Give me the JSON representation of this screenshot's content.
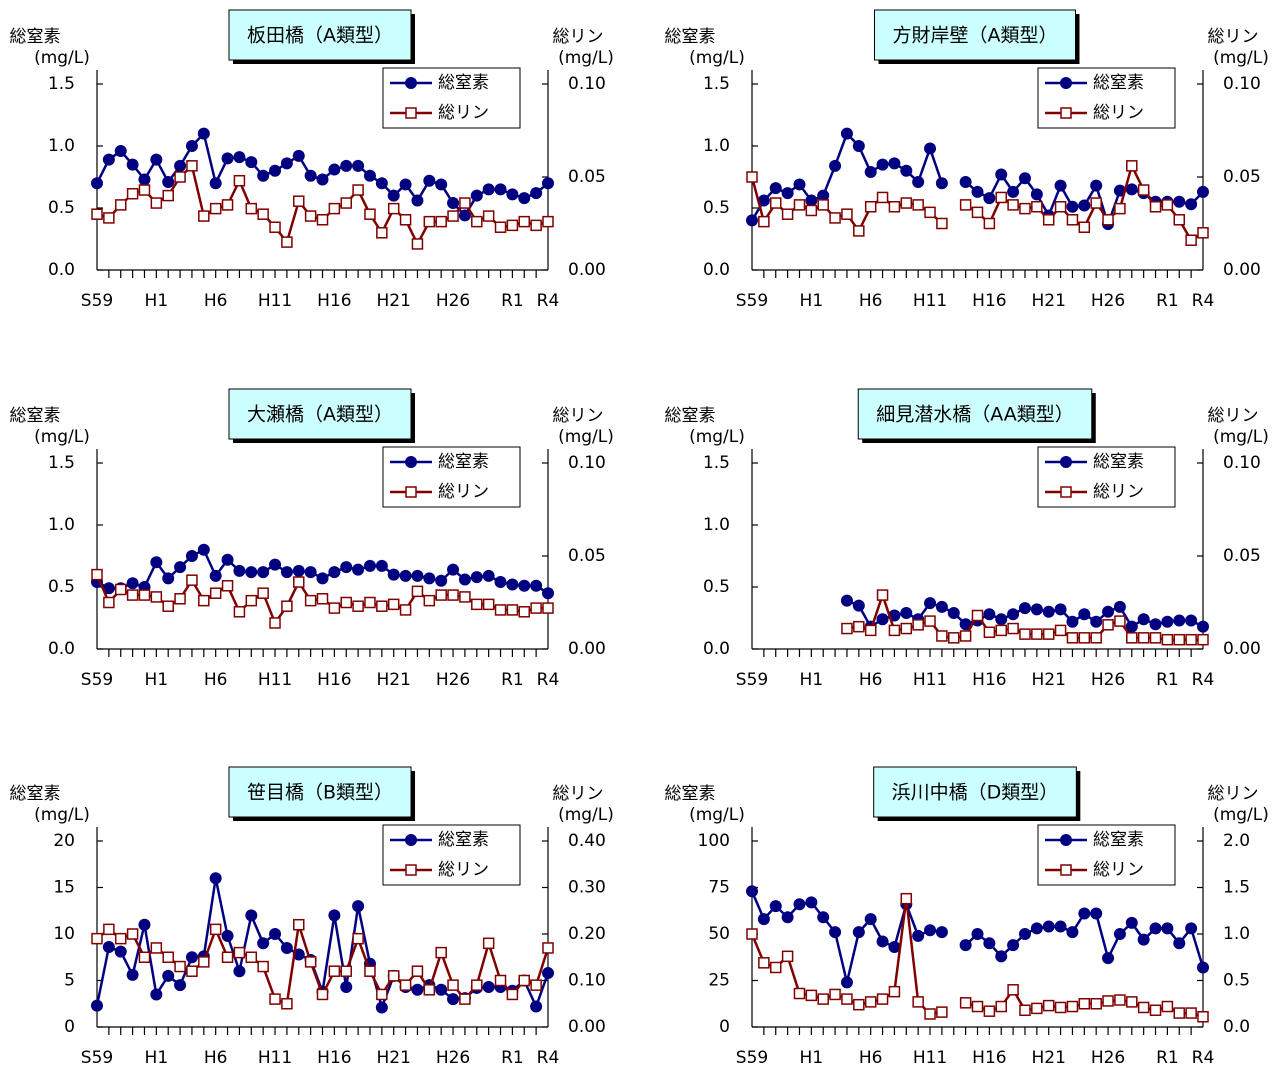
{
  "chart_data": [
    {
      "type": "line",
      "title": "板田橋（A類型）",
      "ylabel": "総窒素",
      "yunit": "(mg/L)",
      "y2label": "総リン",
      "y2unit": "(mg/L)",
      "legend": "upper right",
      "categories": [
        "S59",
        null,
        null,
        null,
        null,
        "H1",
        null,
        null,
        null,
        null,
        "H6",
        null,
        null,
        null,
        null,
        "H11",
        null,
        null,
        null,
        null,
        "H16",
        null,
        null,
        null,
        null,
        "H21",
        null,
        null,
        null,
        null,
        "H26",
        null,
        null,
        null,
        null,
        "R1",
        null,
        null,
        "R4"
      ],
      "ylim": [
        0,
        1.5
      ],
      "yticks": [
        {
          "value": 0,
          "label": "0.0"
        },
        0.5,
        {
          "value": 1,
          "label": "1.0"
        },
        1.5
      ],
      "y2lim": [
        0,
        0.1
      ],
      "y2ticks": [
        {
          "value": 0,
          "label": "0.00"
        },
        0.05,
        {
          "value": 0.1,
          "label": "0.10"
        }
      ],
      "series": [
        {
          "name": "総窒素",
          "color": "#000080",
          "marker": "circle",
          "values": [
            0.7,
            0.89,
            0.96,
            0.85,
            0.73,
            0.89,
            0.71,
            0.84,
            1.0,
            1.1,
            0.7,
            0.9,
            0.91,
            0.87,
            0.76,
            0.8,
            0.86,
            0.92,
            0.76,
            0.73,
            0.81,
            0.84,
            0.84,
            0.76,
            0.7,
            0.6,
            0.69,
            0.56,
            0.72,
            0.69,
            0.54,
            0.44,
            0.6,
            0.65,
            0.65,
            0.61,
            0.58,
            0.62,
            0.7
          ]
        },
        {
          "name": "総リン",
          "color": "#800000",
          "marker": "square",
          "axis": "y2",
          "values": [
            0.03,
            0.028,
            0.035,
            0.041,
            0.043,
            0.036,
            0.04,
            0.05,
            0.056,
            0.029,
            0.033,
            0.035,
            0.048,
            0.033,
            0.03,
            0.023,
            0.015,
            0.037,
            0.029,
            0.027,
            0.033,
            0.036,
            0.043,
            0.03,
            0.02,
            0.033,
            0.027,
            0.014,
            0.026,
            0.026,
            0.029,
            0.036,
            0.026,
            0.029,
            0.023,
            0.024,
            0.026,
            0.024,
            0.026
          ]
        }
      ]
    },
    {
      "type": "line",
      "title": "方財岸壁（A類型）",
      "ylabel": "総窒素",
      "yunit": "(mg/L)",
      "y2label": "総リン",
      "y2unit": "(mg/L)",
      "legend": "upper right",
      "categories": [
        "S59",
        null,
        null,
        null,
        null,
        "H1",
        null,
        null,
        null,
        null,
        "H6",
        null,
        null,
        null,
        null,
        "H11",
        null,
        null,
        null,
        null,
        "H16",
        null,
        null,
        null,
        null,
        "H21",
        null,
        null,
        null,
        null,
        "H26",
        null,
        null,
        null,
        null,
        "R1",
        null,
        null,
        "R4"
      ],
      "ylim": [
        0,
        1.5
      ],
      "yticks": [
        {
          "value": 0,
          "label": "0.0"
        },
        0.5,
        {
          "value": 1,
          "label": "1.0"
        },
        1.5
      ],
      "y2lim": [
        0,
        0.1
      ],
      "y2ticks": [
        {
          "value": 0,
          "label": "0.00"
        },
        0.05,
        {
          "value": 0.1,
          "label": "0.10"
        }
      ],
      "series": [
        {
          "name": "総窒素",
          "color": "#000080",
          "marker": "circle",
          "values": [
            0.4,
            0.56,
            0.66,
            0.62,
            0.69,
            0.56,
            0.6,
            0.84,
            1.1,
            1.0,
            0.79,
            0.85,
            0.86,
            0.8,
            0.71,
            0.98,
            0.7,
            null,
            0.71,
            0.63,
            0.58,
            0.77,
            0.63,
            0.74,
            0.61,
            0.44,
            0.68,
            0.51,
            0.52,
            0.68,
            0.37,
            0.64,
            0.65,
            0.62,
            0.55,
            0.55,
            0.55,
            0.53,
            0.63
          ]
        },
        {
          "name": "総リン",
          "color": "#800000",
          "marker": "square",
          "axis": "y2",
          "values": [
            0.05,
            0.026,
            0.036,
            0.03,
            0.035,
            0.032,
            0.035,
            0.028,
            0.03,
            0.021,
            0.034,
            0.039,
            0.034,
            0.036,
            0.035,
            0.031,
            0.025,
            null,
            0.035,
            0.031,
            0.025,
            0.039,
            0.035,
            0.033,
            0.034,
            0.027,
            0.034,
            0.027,
            0.023,
            0.036,
            0.027,
            0.033,
            0.056,
            0.043,
            0.034,
            0.035,
            0.027,
            0.016,
            0.02
          ]
        }
      ]
    },
    {
      "type": "line",
      "title": "大瀬橋（A類型）",
      "ylabel": "総窒素",
      "yunit": "(mg/L)",
      "y2label": "総リン",
      "y2unit": "(mg/L)",
      "legend": "upper right",
      "categories": [
        "S59",
        null,
        null,
        null,
        null,
        "H1",
        null,
        null,
        null,
        null,
        "H6",
        null,
        null,
        null,
        null,
        "H11",
        null,
        null,
        null,
        null,
        "H16",
        null,
        null,
        null,
        null,
        "H21",
        null,
        null,
        null,
        null,
        "H26",
        null,
        null,
        null,
        null,
        "R1",
        null,
        null,
        "R4"
      ],
      "ylim": [
        0,
        1.5
      ],
      "yticks": [
        {
          "value": 0,
          "label": "0.0"
        },
        0.5,
        {
          "value": 1,
          "label": "1.0"
        },
        1.5
      ],
      "y2lim": [
        0,
        0.1
      ],
      "y2ticks": [
        {
          "value": 0,
          "label": "0.00"
        },
        0.05,
        {
          "value": 0.1,
          "label": "0.10"
        }
      ],
      "series": [
        {
          "name": "総窒素",
          "color": "#000080",
          "marker": "circle",
          "values": [
            0.54,
            0.49,
            0.49,
            0.53,
            0.5,
            0.7,
            0.57,
            0.66,
            0.75,
            0.8,
            0.59,
            0.72,
            0.63,
            0.62,
            0.62,
            0.68,
            0.62,
            0.63,
            0.62,
            0.57,
            0.62,
            0.66,
            0.64,
            0.67,
            0.67,
            0.6,
            0.59,
            0.59,
            0.57,
            0.55,
            0.64,
            0.56,
            0.58,
            0.59,
            0.54,
            0.52,
            0.51,
            0.51,
            0.45
          ]
        },
        {
          "name": "総リン",
          "color": "#800000",
          "marker": "square",
          "axis": "y2",
          "values": [
            0.04,
            0.025,
            0.032,
            0.029,
            0.029,
            0.028,
            0.023,
            0.027,
            0.037,
            0.026,
            0.03,
            0.034,
            0.02,
            0.026,
            0.03,
            0.014,
            0.023,
            0.036,
            0.026,
            0.027,
            0.022,
            0.025,
            0.023,
            0.025,
            0.023,
            0.024,
            0.021,
            0.031,
            0.026,
            0.029,
            0.029,
            0.028,
            0.024,
            0.024,
            0.021,
            0.021,
            0.02,
            0.022,
            0.022
          ]
        }
      ]
    },
    {
      "type": "line",
      "title": "細見潜水橋（AA類型）",
      "ylabel": "総窒素",
      "yunit": "(mg/L)",
      "y2label": "総リン",
      "y2unit": "(mg/L)",
      "legend": "upper right",
      "categories": [
        "S59",
        null,
        null,
        null,
        null,
        "H1",
        null,
        null,
        null,
        null,
        "H6",
        null,
        null,
        null,
        null,
        "H11",
        null,
        null,
        null,
        null,
        "H16",
        null,
        null,
        null,
        null,
        "H21",
        null,
        null,
        null,
        null,
        "H26",
        null,
        null,
        null,
        null,
        "R1",
        null,
        null,
        "R4"
      ],
      "ylim": [
        0,
        1.5
      ],
      "yticks": [
        {
          "value": 0,
          "label": "0.0"
        },
        0.5,
        {
          "value": 1,
          "label": "1.0"
        },
        1.5
      ],
      "y2lim": [
        0,
        0.1
      ],
      "y2ticks": [
        {
          "value": 0,
          "label": "0.00"
        },
        0.05,
        {
          "value": 0.1,
          "label": "0.10"
        }
      ],
      "series": [
        {
          "name": "総窒素",
          "color": "#000080",
          "marker": "circle",
          "values": [
            null,
            null,
            null,
            null,
            null,
            null,
            null,
            null,
            0.39,
            0.35,
            0.18,
            0.24,
            0.27,
            0.29,
            0.24,
            0.37,
            0.34,
            0.29,
            0.2,
            0.23,
            0.28,
            0.24,
            0.28,
            0.33,
            0.32,
            0.3,
            0.32,
            0.22,
            0.28,
            0.22,
            0.3,
            0.34,
            0.18,
            0.24,
            0.2,
            0.22,
            0.23,
            0.23,
            0.18
          ]
        },
        {
          "name": "総リン",
          "color": "#800000",
          "marker": "square",
          "axis": "y2",
          "values": [
            null,
            null,
            null,
            null,
            null,
            null,
            null,
            null,
            0.011,
            0.012,
            0.01,
            0.029,
            0.01,
            0.011,
            0.013,
            0.015,
            0.007,
            0.006,
            0.007,
            0.018,
            0.009,
            0.01,
            0.011,
            0.008,
            0.008,
            0.008,
            0.01,
            0.006,
            0.006,
            0.006,
            0.013,
            0.015,
            0.006,
            0.006,
            0.006,
            0.005,
            0.005,
            0.005,
            0.005
          ]
        }
      ]
    },
    {
      "type": "line",
      "title": "笹目橋（B類型）",
      "ylabel": "総窒素",
      "yunit": "(mg/L)",
      "y2label": "総リン",
      "y2unit": "(mg/L)",
      "legend": "upper right",
      "categories": [
        "S59",
        null,
        null,
        null,
        null,
        "H1",
        null,
        null,
        null,
        null,
        "H6",
        null,
        null,
        null,
        null,
        "H11",
        null,
        null,
        null,
        null,
        "H16",
        null,
        null,
        null,
        null,
        "H21",
        null,
        null,
        null,
        null,
        "H26",
        null,
        null,
        null,
        null,
        "R1",
        null,
        null,
        "R4"
      ],
      "ylim": [
        0,
        20
      ],
      "yticks": [
        0,
        5,
        10,
        15,
        20
      ],
      "y2lim": [
        0,
        0.4
      ],
      "y2ticks": [
        {
          "value": 0,
          "label": "0.00"
        },
        {
          "value": 0.1,
          "label": "0.10"
        },
        {
          "value": 0.2,
          "label": "0.20"
        },
        {
          "value": 0.3,
          "label": "0.30"
        },
        {
          "value": 0.4,
          "label": "0.40"
        }
      ],
      "series": [
        {
          "name": "総窒素",
          "color": "#000080",
          "marker": "circle",
          "values": [
            2.3,
            8.6,
            8.1,
            5.6,
            11.0,
            3.5,
            5.5,
            4.5,
            7.5,
            7.6,
            16.0,
            9.8,
            6.0,
            12.0,
            9.0,
            10.0,
            8.5,
            7.8,
            7.2,
            3.8,
            12.0,
            4.3,
            13.0,
            6.8,
            2.1,
            5.5,
            4.3,
            4.0,
            4.5,
            4.0,
            3.0,
            3.1,
            4.2,
            4.3,
            4.3,
            3.9,
            5.0,
            2.2,
            5.8
          ]
        },
        {
          "name": "総リン",
          "color": "#800000",
          "marker": "square",
          "axis": "y2",
          "values": [
            0.19,
            0.21,
            0.19,
            0.2,
            0.15,
            0.17,
            0.15,
            0.13,
            0.12,
            0.14,
            0.21,
            0.15,
            0.16,
            0.15,
            0.13,
            0.06,
            0.05,
            0.22,
            0.14,
            0.07,
            0.12,
            0.12,
            0.19,
            0.12,
            0.07,
            0.11,
            0.09,
            0.12,
            0.08,
            0.16,
            0.09,
            0.06,
            0.09,
            0.18,
            0.1,
            0.07,
            0.1,
            0.09,
            0.17
          ]
        }
      ]
    },
    {
      "type": "line",
      "title": "浜川中橋（D類型）",
      "ylabel": "総窒素",
      "yunit": "(mg/L)",
      "y2label": "総リン",
      "y2unit": "(mg/L)",
      "legend": "upper right",
      "categories": [
        "S59",
        null,
        null,
        null,
        null,
        "H1",
        null,
        null,
        null,
        null,
        "H6",
        null,
        null,
        null,
        null,
        "H11",
        null,
        null,
        null,
        null,
        "H16",
        null,
        null,
        null,
        null,
        "H21",
        null,
        null,
        null,
        null,
        "H26",
        null,
        null,
        null,
        null,
        "R1",
        null,
        null,
        "R4"
      ],
      "ylim": [
        0,
        100
      ],
      "yticks": [
        0,
        25,
        50,
        75,
        100
      ],
      "y2lim": [
        0,
        2
      ],
      "y2ticks": [
        {
          "value": 0,
          "label": "0.0"
        },
        0.5,
        {
          "value": 1,
          "label": "1.0"
        },
        1.5,
        {
          "value": 2,
          "label": "2.0"
        }
      ],
      "series": [
        {
          "name": "総窒素",
          "color": "#000080",
          "marker": "circle",
          "values": [
            73,
            58,
            65,
            59,
            66,
            67,
            59,
            51,
            24,
            51,
            58,
            46,
            43,
            66,
            49,
            52,
            51,
            null,
            44,
            50,
            45,
            38,
            44,
            50,
            53,
            54,
            54,
            51,
            61,
            61,
            37,
            50,
            56,
            47,
            53,
            53,
            45,
            53,
            32
          ]
        },
        {
          "name": "総リン",
          "color": "#800000",
          "marker": "square",
          "axis": "y2",
          "values": [
            1.0,
            0.69,
            0.64,
            0.76,
            0.36,
            0.34,
            0.3,
            0.35,
            0.3,
            0.24,
            0.27,
            0.3,
            0.38,
            1.38,
            0.27,
            0.14,
            0.16,
            null,
            0.26,
            0.22,
            0.17,
            0.22,
            0.4,
            0.18,
            0.2,
            0.23,
            0.21,
            0.22,
            0.25,
            0.25,
            0.28,
            0.29,
            0.27,
            0.21,
            0.18,
            0.22,
            0.15,
            0.15,
            0.11
          ]
        }
      ]
    }
  ]
}
